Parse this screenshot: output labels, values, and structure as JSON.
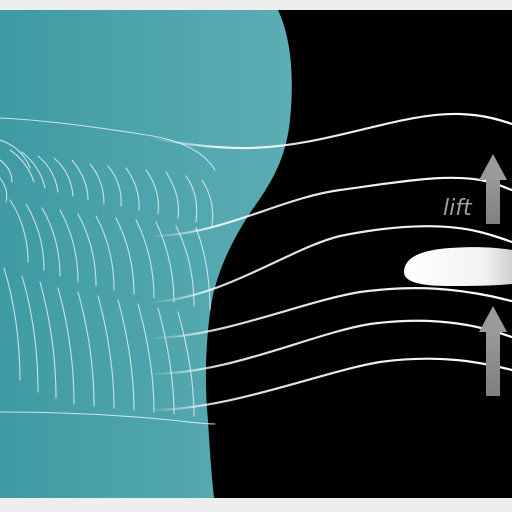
{
  "labels": {
    "lift": "lift"
  },
  "colors": {
    "frame": "#eeeeee",
    "teal_dark": "#3f9aa3",
    "teal_light": "#5cadb4",
    "night": "#000000",
    "streamline": "#ffffff",
    "arrow": "#8a8a8a"
  },
  "icons": {
    "wing": "bird-wing-feathers",
    "airfoil": "airfoil-profile",
    "arrows": "upward-arrow"
  }
}
